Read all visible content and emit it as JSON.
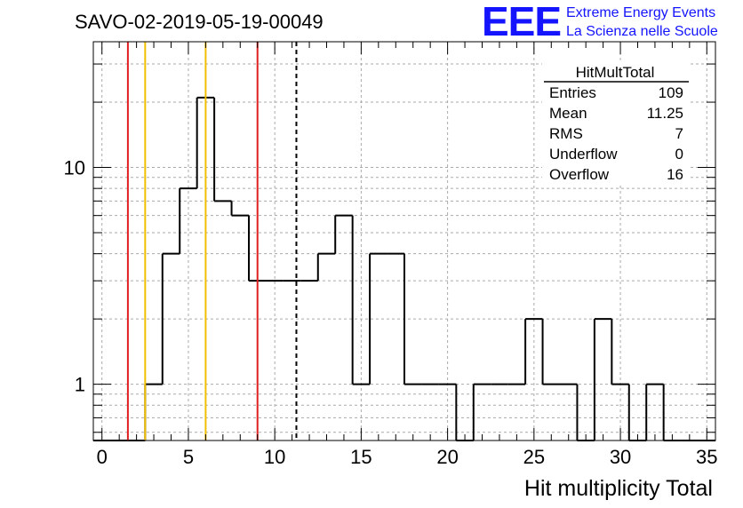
{
  "header": {
    "run_title": "SAVO-02-2019-05-19-00049",
    "logo_text": "EEE",
    "logo_line1": "Extreme Energy Events",
    "logo_line2": "La Scienza nelle Scuole"
  },
  "stats_box": {
    "title": "HitMultTotal",
    "rows": [
      {
        "label": "Entries",
        "value": "109"
      },
      {
        "label": "Mean",
        "value": "11.25"
      },
      {
        "label": "RMS",
        "value": "7"
      },
      {
        "label": "Underflow",
        "value": "0"
      },
      {
        "label": "Overflow",
        "value": "16"
      }
    ]
  },
  "chart_data": {
    "type": "bar",
    "histogram_name": "HitMultTotal",
    "title": "",
    "xlabel": "Hit multiplicity Total",
    "ylabel": "",
    "xlim": [
      -0.5,
      35.5
    ],
    "ylim": [
      0.55,
      38
    ],
    "y_scale": "log",
    "grid": true,
    "x_ticks": [
      0,
      5,
      10,
      15,
      20,
      25,
      30,
      35
    ],
    "y_ticks": [
      1,
      10
    ],
    "bin_width": 1,
    "bin_centers": [
      0,
      1,
      2,
      3,
      4,
      5,
      6,
      7,
      8,
      9,
      10,
      11,
      12,
      13,
      14,
      15,
      16,
      17,
      18,
      19,
      20,
      21,
      22,
      23,
      24,
      25,
      26,
      27,
      28,
      29,
      30,
      31,
      32,
      33,
      34,
      35
    ],
    "values": [
      0,
      0,
      0,
      1,
      4,
      8,
      21,
      7,
      6,
      3,
      3,
      3,
      3,
      4,
      6,
      1,
      4,
      4,
      1,
      1,
      1,
      0,
      1,
      1,
      1,
      2,
      1,
      1,
      0,
      2,
      1,
      0,
      1,
      0,
      0,
      0
    ],
    "vertical_lines": [
      {
        "x": 1.5,
        "color": "#e02020",
        "style": "solid"
      },
      {
        "x": 2.5,
        "color": "#f0c000",
        "style": "solid"
      },
      {
        "x": 6.0,
        "color": "#f0c000",
        "style": "solid"
      },
      {
        "x": 9.0,
        "color": "#e02020",
        "style": "solid"
      },
      {
        "x": 11.25,
        "color": "#000000",
        "style": "dashed"
      }
    ],
    "line_color": "#000000"
  }
}
